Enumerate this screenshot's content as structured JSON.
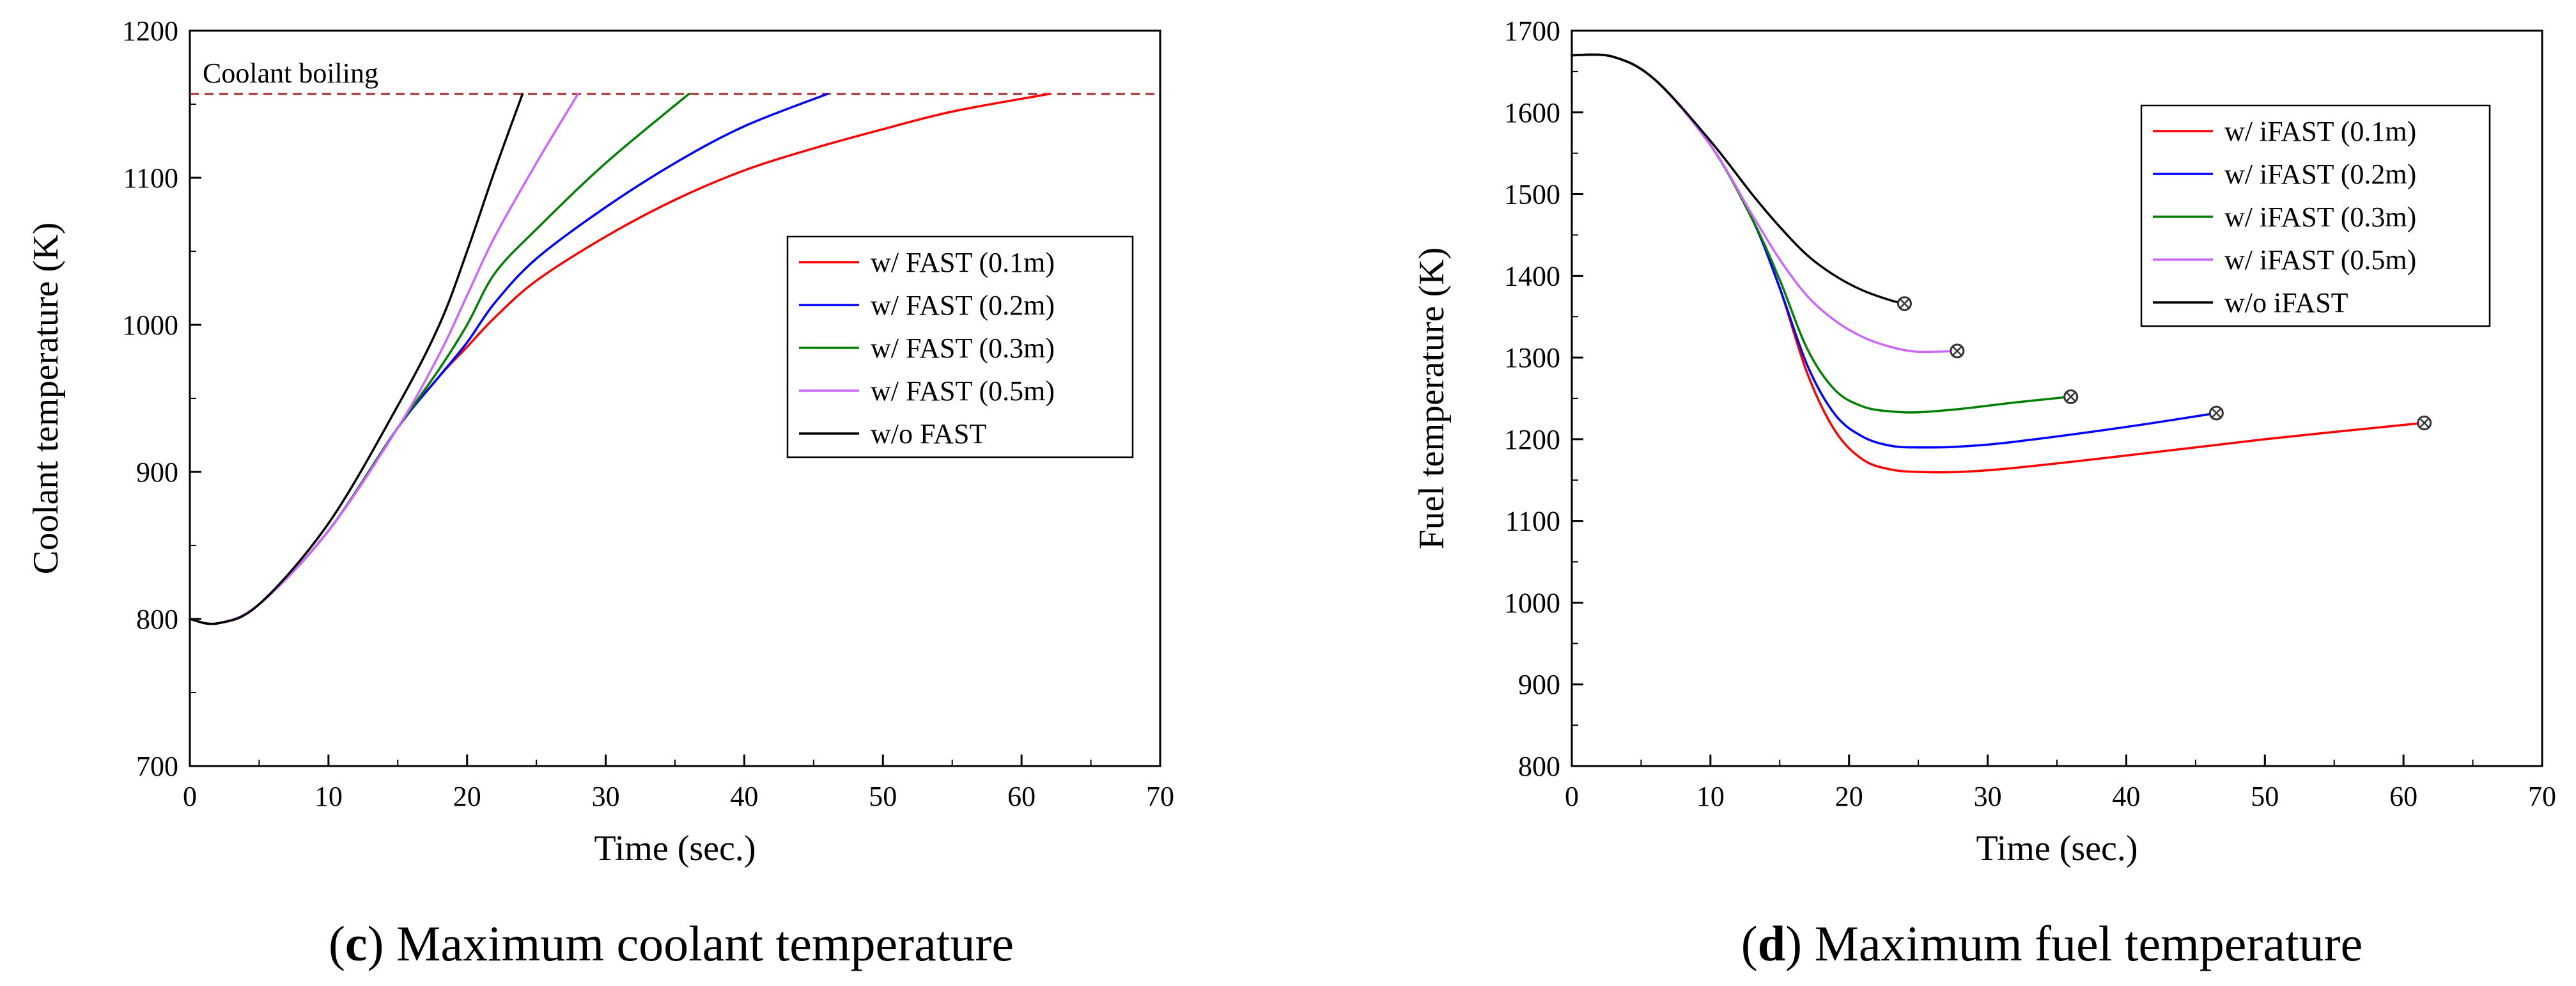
{
  "chart_data": [
    {
      "type": "line",
      "panel_letter": "c",
      "caption": "Maximum coolant temperature",
      "xlabel": "Time (sec.)",
      "ylabel": "Coolant temperature (K)",
      "xlim": [
        0,
        70
      ],
      "ylim": [
        700,
        1200
      ],
      "xticks": [
        0,
        10,
        20,
        30,
        40,
        50,
        60,
        70
      ],
      "yticks": [
        700,
        800,
        900,
        1000,
        1100,
        1200
      ],
      "legend_position": "center-right",
      "hline": {
        "y": 1157,
        "label": "Coolant boiling",
        "color": "#a52a2a"
      },
      "series": [
        {
          "name": "w/ FAST (0.1m)",
          "color": "#ff0000",
          "x": [
            0,
            2,
            5,
            10,
            15,
            18,
            20,
            22,
            25,
            30,
            35,
            40,
            45,
            50,
            55,
            62
          ],
          "y": [
            800,
            797,
            810,
            860,
            930,
            965,
            985,
            1005,
            1030,
            1060,
            1085,
            1105,
            1120,
            1133,
            1145,
            1157
          ]
        },
        {
          "name": "w/ FAST (0.2m)",
          "color": "#0000ff",
          "x": [
            0,
            2,
            5,
            10,
            15,
            18,
            20,
            22,
            25,
            30,
            35,
            40,
            46
          ],
          "y": [
            800,
            797,
            810,
            860,
            930,
            965,
            988,
            1015,
            1045,
            1080,
            1110,
            1135,
            1157
          ]
        },
        {
          "name": "w/ FAST (0.3m)",
          "color": "#008000",
          "x": [
            0,
            2,
            5,
            10,
            15,
            18,
            20,
            22,
            25,
            30,
            36
          ],
          "y": [
            800,
            797,
            810,
            860,
            930,
            970,
            1000,
            1035,
            1065,
            1110,
            1157
          ]
        },
        {
          "name": "w/ FAST (0.5m)",
          "color": "#cc66ff",
          "x": [
            0,
            2,
            5,
            10,
            15,
            18,
            20,
            22,
            25,
            28
          ],
          "y": [
            800,
            797,
            810,
            860,
            930,
            980,
            1020,
            1060,
            1110,
            1157
          ]
        },
        {
          "name": "w/o FAST",
          "color": "#000000",
          "x": [
            0,
            2,
            5,
            10,
            15,
            18,
            20,
            22,
            24
          ],
          "y": [
            800,
            797,
            810,
            865,
            945,
            1000,
            1050,
            1105,
            1157
          ]
        }
      ]
    },
    {
      "type": "line",
      "panel_letter": "d",
      "caption": "Maximum fuel temperature",
      "xlabel": "Time (sec.)",
      "ylabel": "Fuel temperature (K)",
      "xlim": [
        0,
        70
      ],
      "ylim": [
        800,
        1700
      ],
      "xticks": [
        0,
        10,
        20,
        30,
        40,
        50,
        60,
        70
      ],
      "yticks": [
        800,
        900,
        1000,
        1100,
        1200,
        1300,
        1400,
        1500,
        1600,
        1700
      ],
      "legend_position": "top-right",
      "series": [
        {
          "name": "w/ iFAST (0.1m)",
          "color": "#ff0000",
          "x": [
            0,
            3,
            6,
            10,
            13,
            15,
            17,
            19,
            21,
            23,
            25,
            28,
            32,
            40,
            50,
            61.5
          ],
          "y": [
            1670,
            1668,
            1640,
            1560,
            1470,
            1385,
            1280,
            1210,
            1175,
            1163,
            1160,
            1160,
            1165,
            1180,
            1200,
            1220
          ]
        },
        {
          "name": "w/ iFAST (0.2m)",
          "color": "#0000ff",
          "x": [
            0,
            3,
            6,
            10,
            13,
            15,
            17,
            19,
            21,
            23,
            25,
            28,
            32,
            40,
            46.5
          ],
          "y": [
            1670,
            1668,
            1640,
            1560,
            1470,
            1385,
            1290,
            1230,
            1203,
            1192,
            1190,
            1191,
            1197,
            1215,
            1232
          ]
        },
        {
          "name": "w/ iFAST (0.3m)",
          "color": "#008000",
          "x": [
            0,
            3,
            6,
            10,
            13,
            15,
            17,
            19,
            21,
            23,
            25,
            28,
            32,
            36
          ],
          "y": [
            1670,
            1668,
            1640,
            1560,
            1470,
            1395,
            1310,
            1260,
            1240,
            1234,
            1233,
            1237,
            1245,
            1252
          ]
        },
        {
          "name": "w/ iFAST (0.5m)",
          "color": "#cc66ff",
          "x": [
            0,
            3,
            6,
            10,
            13,
            15,
            17,
            19,
            21,
            23,
            25,
            27.8
          ],
          "y": [
            1670,
            1668,
            1640,
            1560,
            1475,
            1420,
            1375,
            1345,
            1325,
            1313,
            1307,
            1308
          ]
        },
        {
          "name": "w/o iFAST",
          "color": "#000000",
          "x": [
            0,
            3,
            6,
            10,
            13,
            15,
            17,
            19,
            21,
            23,
            24
          ],
          "y": [
            1670,
            1668,
            1640,
            1565,
            1500,
            1460,
            1425,
            1400,
            1382,
            1370,
            1366
          ]
        }
      ]
    }
  ]
}
